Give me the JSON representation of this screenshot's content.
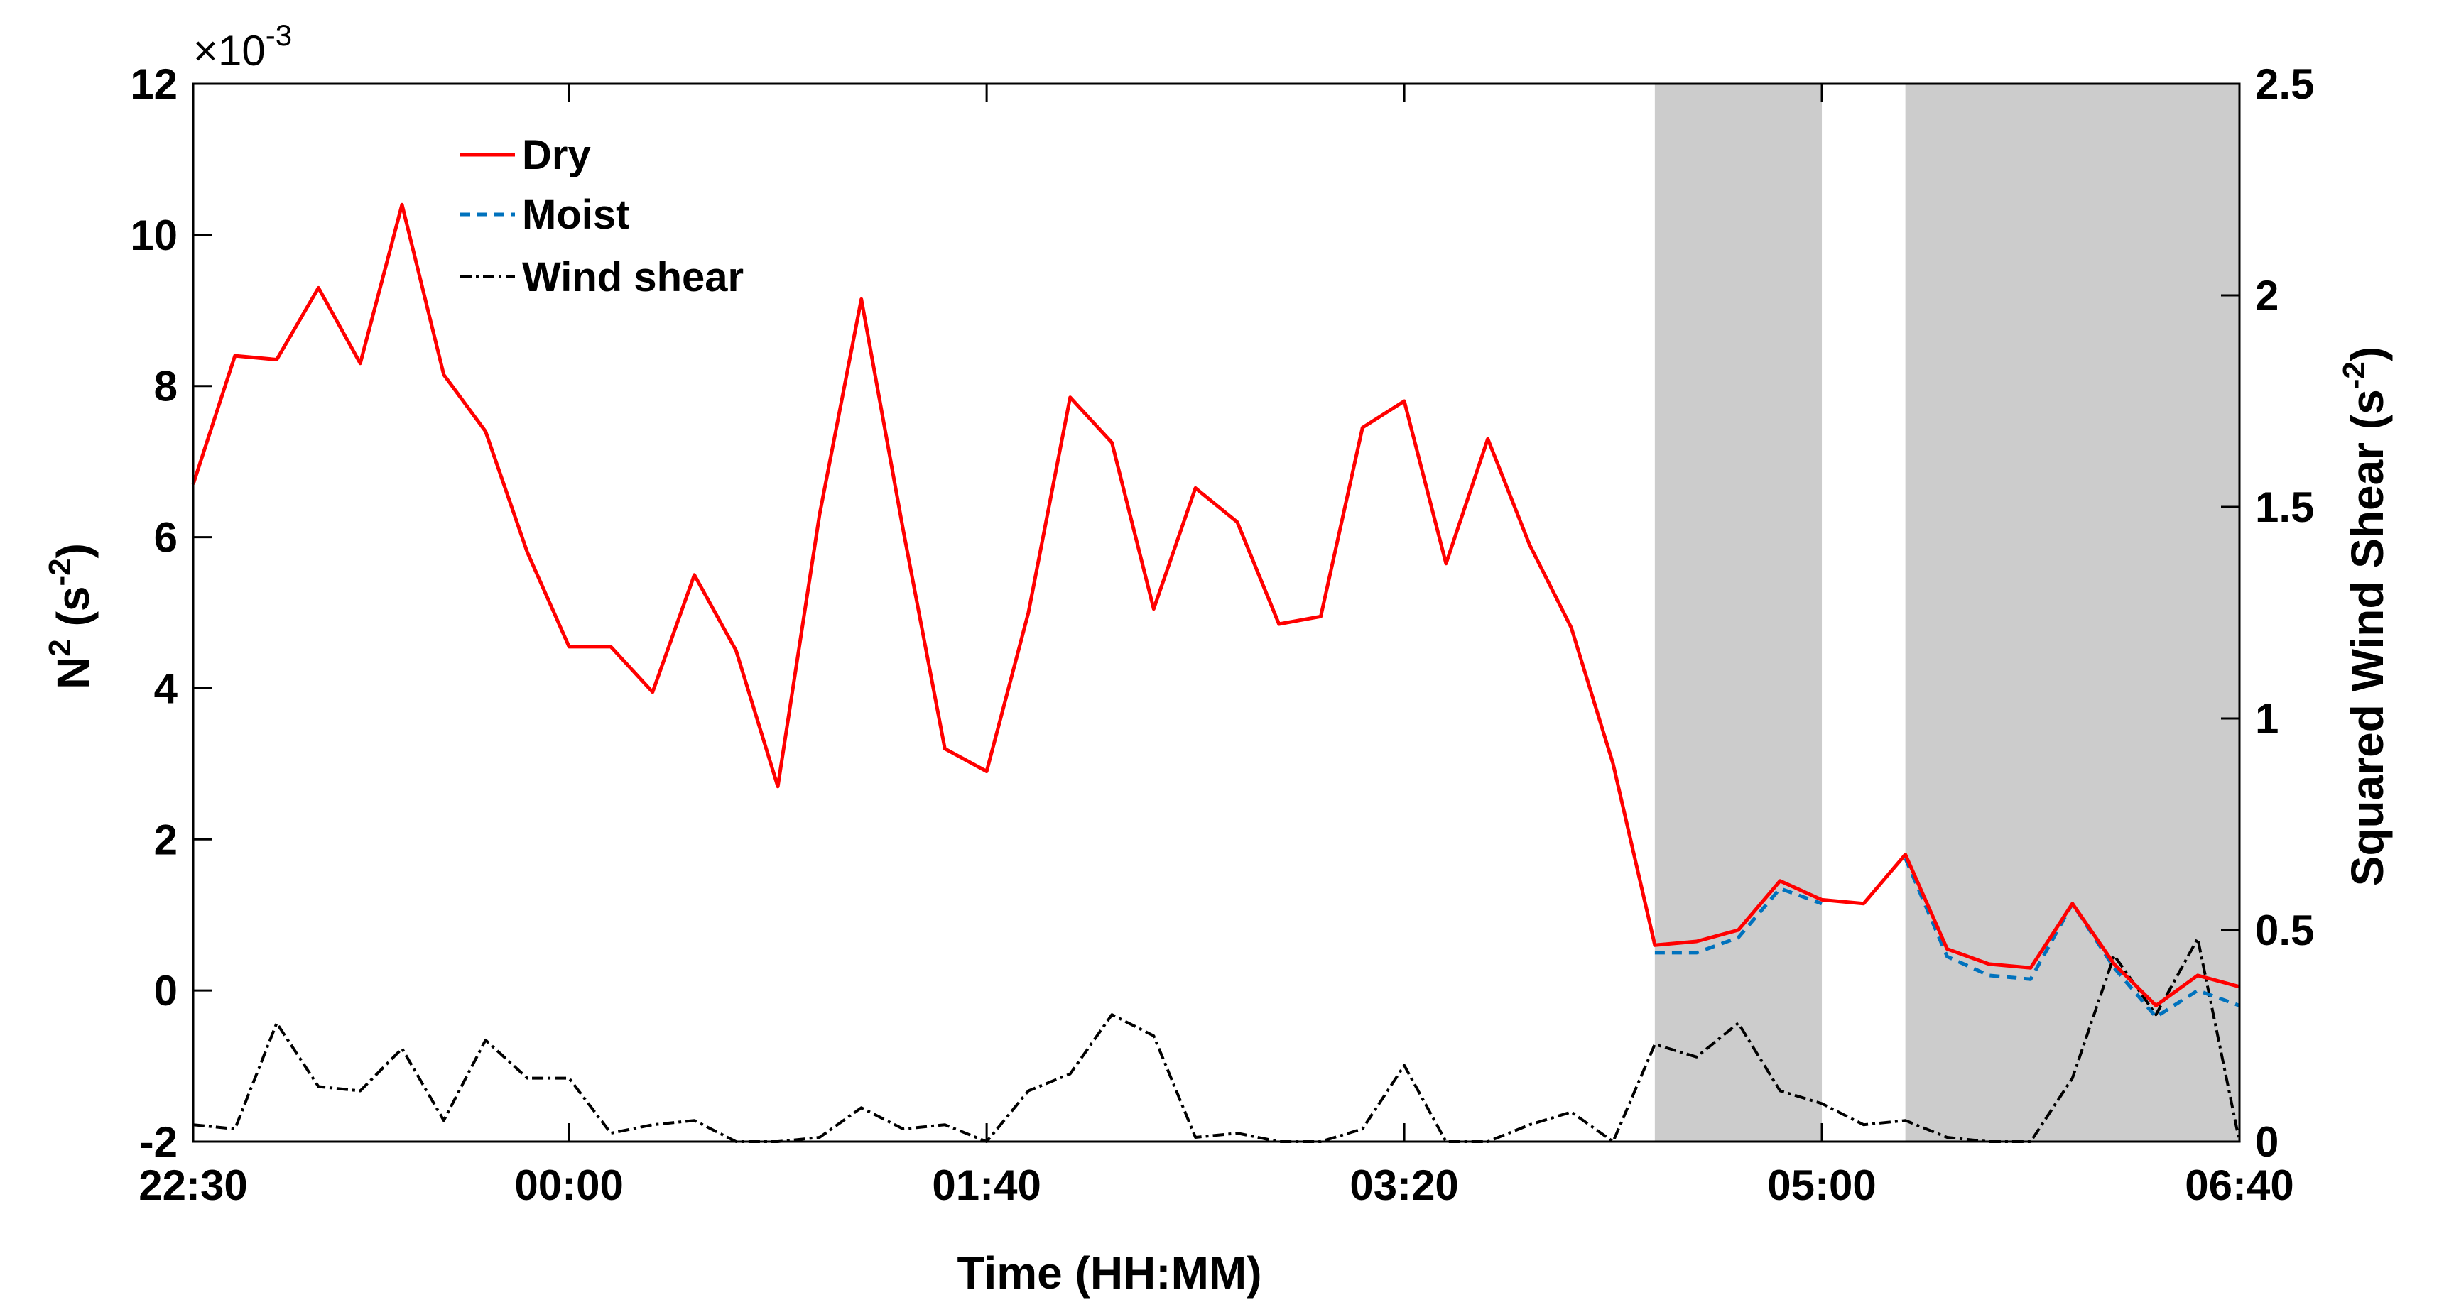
{
  "chart_data": {
    "type": "line",
    "xlabel": "Time (HH:MM)",
    "ylabel_left": {
      "base": "N",
      "sup": "2",
      "unit_open": " (s",
      "unit_sup": "-2",
      "unit_close": ")"
    },
    "ylabel_right": {
      "text": "Squared Wind Shear (s",
      "sup": "-2",
      "close": ")"
    },
    "left_scale": {
      "prefix": "×10",
      "exponent": "-3"
    },
    "xlim_minutes": [
      0,
      490
    ],
    "x_ticks": [
      {
        "t": 0,
        "label": "22:30"
      },
      {
        "t": 90,
        "label": "00:00"
      },
      {
        "t": 190,
        "label": "01:40"
      },
      {
        "t": 290,
        "label": "03:20"
      },
      {
        "t": 390,
        "label": "05:00"
      },
      {
        "t": 490,
        "label": "06:40"
      }
    ],
    "ylim_left": [
      -2,
      12
    ],
    "y_ticks_left": [
      {
        "v": -2,
        "label": "-2"
      },
      {
        "v": 0,
        "label": "0"
      },
      {
        "v": 2,
        "label": "2"
      },
      {
        "v": 4,
        "label": "4"
      },
      {
        "v": 6,
        "label": "6"
      },
      {
        "v": 8,
        "label": "8"
      },
      {
        "v": 10,
        "label": "10"
      },
      {
        "v": 12,
        "label": "12"
      }
    ],
    "ylim_right": [
      0,
      2.5
    ],
    "y_ticks_right": [
      {
        "v": 0,
        "label": "0"
      },
      {
        "v": 0.5,
        "label": "0.5"
      },
      {
        "v": 1,
        "label": "1"
      },
      {
        "v": 1.5,
        "label": "1.5"
      },
      {
        "v": 2,
        "label": "2"
      },
      {
        "v": 2.5,
        "label": "2.5"
      }
    ],
    "shaded_regions": [
      {
        "t0": 350,
        "t1": 390
      },
      {
        "t0": 410,
        "t1": 490
      }
    ],
    "legend_position": "upper-left",
    "series": [
      {
        "name": "Dry",
        "axis": "left",
        "color": "#ff0000",
        "dash": "solid",
        "x": [
          0,
          10,
          20,
          30,
          40,
          50,
          60,
          70,
          80,
          90,
          100,
          110,
          120,
          130,
          140,
          150,
          160,
          170,
          180,
          190,
          200,
          210,
          220,
          230,
          240,
          250,
          260,
          270,
          280,
          290,
          300,
          310,
          320,
          330,
          340,
          350,
          360,
          370,
          380,
          390,
          400,
          410,
          420,
          430,
          440,
          450,
          460,
          470,
          480,
          490
        ],
        "y": [
          6.7,
          8.4,
          8.35,
          9.3,
          8.3,
          10.4,
          8.15,
          7.4,
          5.8,
          4.55,
          4.55,
          3.95,
          5.5,
          4.5,
          2.7,
          6.3,
          9.15,
          6.1,
          3.2,
          2.9,
          5.0,
          7.85,
          7.25,
          5.05,
          6.65,
          6.2,
          4.85,
          4.95,
          7.45,
          7.8,
          5.65,
          7.3,
          5.9,
          4.8,
          3.0,
          0.6,
          0.65,
          0.8,
          1.45,
          1.2,
          1.15,
          1.8,
          0.55,
          0.35,
          0.3,
          1.15,
          0.35,
          -0.2,
          0.2,
          0.05
        ]
      },
      {
        "name": "Moist",
        "axis": "left",
        "color": "#0072bd",
        "dash": "dashed",
        "x": [
          350,
          360,
          370,
          380,
          390
        ],
        "y": [
          0.5,
          0.5,
          0.7,
          1.35,
          1.15
        ],
        "x2": [
          410,
          420,
          430,
          440,
          450,
          460,
          470,
          480,
          490
        ],
        "y2": [
          1.75,
          0.45,
          0.2,
          0.15,
          1.15,
          0.3,
          -0.35,
          0.0,
          -0.2
        ]
      },
      {
        "name": "Wind shear",
        "axis": "right",
        "color": "#000000",
        "dash": "dashdot",
        "x": [
          0,
          10,
          20,
          30,
          40,
          50,
          60,
          70,
          80,
          90,
          100,
          110,
          120,
          130,
          140,
          150,
          160,
          170,
          180,
          190,
          200,
          210,
          220,
          230,
          240,
          250,
          260,
          270,
          280,
          290,
          300,
          310,
          320,
          330,
          340,
          350,
          360,
          370,
          380,
          390,
          400,
          410,
          420,
          430,
          440,
          450,
          460,
          470,
          480,
          490
        ],
        "y": [
          0.04,
          0.03,
          0.28,
          0.13,
          0.12,
          0.22,
          0.05,
          0.24,
          0.15,
          0.15,
          0.02,
          0.04,
          0.05,
          0.0,
          0.0,
          0.01,
          0.08,
          0.03,
          0.04,
          0.0,
          0.12,
          0.16,
          0.3,
          0.25,
          0.01,
          0.02,
          0.0,
          0.0,
          0.03,
          0.18,
          0.0,
          0.0,
          0.04,
          0.07,
          0.0,
          0.23,
          0.2,
          0.28,
          0.12,
          0.09,
          0.04,
          0.05,
          0.01,
          0.0,
          0.0,
          0.15,
          0.44,
          0.3,
          0.48,
          0.0
        ]
      }
    ]
  }
}
